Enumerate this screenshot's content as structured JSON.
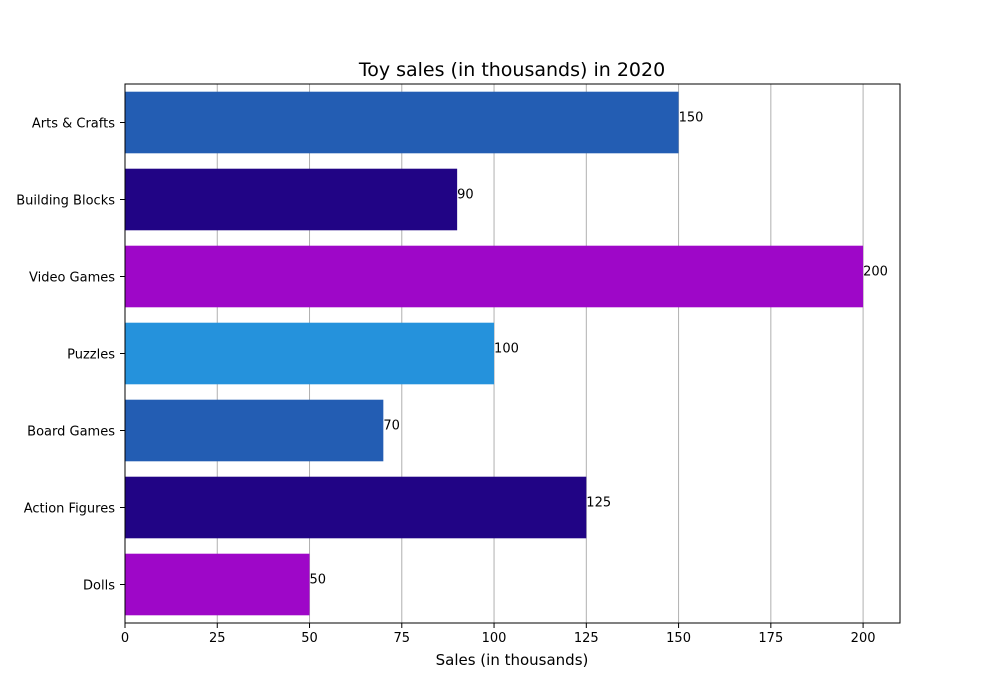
{
  "chart_data": {
    "type": "bar",
    "orientation": "horizontal",
    "title": "Toy sales (in thousands) in 2020",
    "xlabel": "Sales (in thousands)",
    "ylabel": "",
    "categories": [
      "Dolls",
      "Action Figures",
      "Board Games",
      "Puzzles",
      "Video Games",
      "Building Blocks",
      "Arts & Crafts"
    ],
    "values": [
      50,
      125,
      70,
      100,
      200,
      90,
      150
    ],
    "bar_colors": [
      "#9e07c8",
      "#210485",
      "#235db3",
      "#2592dc",
      "#9e07c8",
      "#210485",
      "#235db3"
    ],
    "xlim": [
      0,
      210
    ],
    "xticks": [
      0,
      25,
      50,
      75,
      100,
      125,
      150,
      175,
      200
    ],
    "grid": "x",
    "grid_color": "#b0b0b0"
  }
}
